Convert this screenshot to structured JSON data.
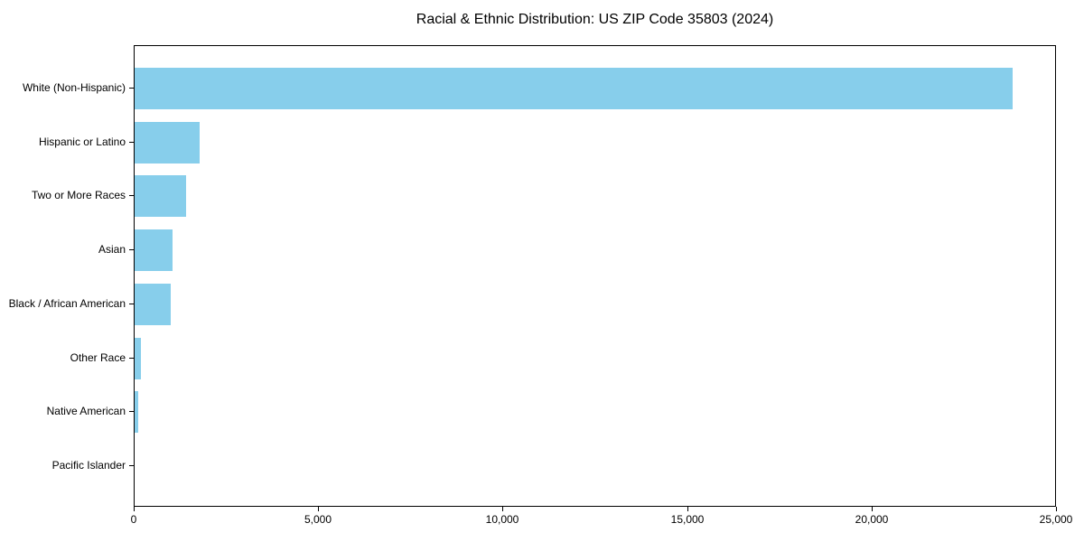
{
  "chart_data": {
    "type": "bar",
    "orientation": "horizontal",
    "title": "Racial & Ethnic Distribution: US ZIP Code 35803 (2024)",
    "categories": [
      "White (Non-Hispanic)",
      "Hispanic or Latino",
      "Two or More Races",
      "Asian",
      "Black / African American",
      "Other Race",
      "Native American",
      "Pacific Islander"
    ],
    "values": [
      23800,
      1760,
      1400,
      1030,
      990,
      160,
      100,
      0
    ],
    "xlabel": "",
    "ylabel": "",
    "xlim": [
      0,
      25000
    ],
    "xticks": [
      0,
      5000,
      10000,
      15000,
      20000,
      25000
    ],
    "xtick_labels": [
      "0",
      "5,000",
      "10,000",
      "15,000",
      "20,000",
      "25,000"
    ],
    "bar_color": "#87CEEB",
    "background_color": "#ffffff",
    "axis_color": "#000000",
    "grid": false,
    "legend": "none",
    "frame": true
  }
}
